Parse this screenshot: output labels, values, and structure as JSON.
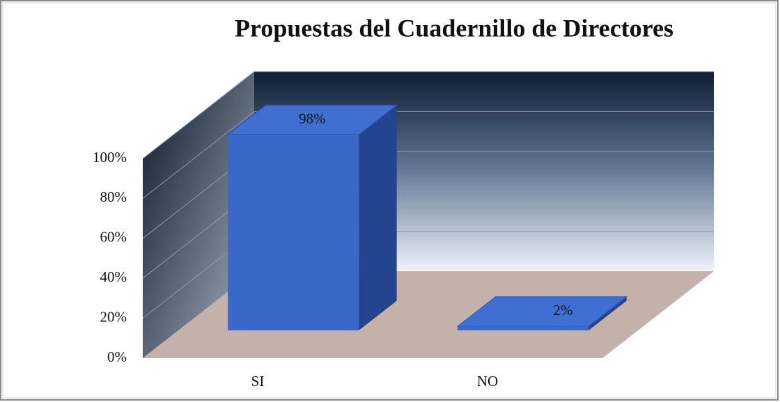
{
  "chart_data": {
    "type": "bar3d",
    "title": "Propuestas del Cuadernillo de Directores",
    "categories": [
      "SI",
      "NO"
    ],
    "values": [
      98,
      2
    ],
    "value_labels": [
      "98%",
      "2%"
    ],
    "color": "#3a68c8",
    "ylim": [
      0,
      100
    ],
    "yticks": [
      {
        "value": 0,
        "label": "0%"
      },
      {
        "value": 20,
        "label": "20%"
      },
      {
        "value": 40,
        "label": "40%"
      },
      {
        "value": 60,
        "label": "60%"
      },
      {
        "value": 80,
        "label": "80%"
      },
      {
        "value": 100,
        "label": "100%"
      }
    ],
    "grid": true
  }
}
